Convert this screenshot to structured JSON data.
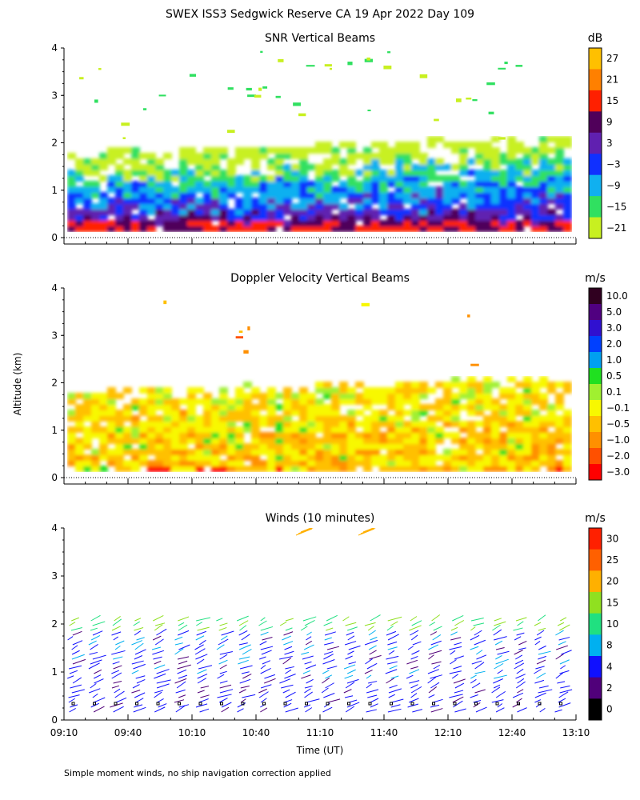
{
  "figure_title": "SWEX ISS3 Sedgwick Reserve CA  19 Apr 2022 Day 109",
  "ylabel": "Altitude (km)",
  "xlabel": "Time (UT)",
  "footnote": "Simple moment winds, no ship navigation correction applied",
  "chart_data": [
    {
      "type": "heatmap",
      "title": "SNR Vertical Beams",
      "ylim": [
        0,
        4
      ],
      "yticks": [
        0,
        1,
        2,
        3,
        4
      ],
      "colorbar": {
        "unit": "dB",
        "labels": [
          "27",
          "21",
          "15",
          "9",
          "3",
          "−3",
          "−9",
          "−15",
          "−21"
        ],
        "colors": [
          "#ffc000",
          "#ff8000",
          "#ff2000",
          "#50005a",
          "#6020b0",
          "#1030ff",
          "#10b0f0",
          "#30e060",
          "#c8f020"
        ]
      },
      "xticks": [
        "09:10",
        "09:40",
        "10:10",
        "10:40",
        "11:10",
        "11:40",
        "12:10",
        "12:40",
        "13:10"
      ]
    },
    {
      "type": "heatmap",
      "title": "Doppler Velocity Vertical Beams",
      "ylim": [
        0,
        4
      ],
      "yticks": [
        0,
        1,
        2,
        3,
        4
      ],
      "colorbar": {
        "unit": "m/s",
        "labels": [
          "10.0",
          "5.0",
          "3.0",
          "2.0",
          "1.0",
          "0.5",
          "0.1",
          "−0.1",
          "−0.5",
          "−1.0",
          "−2.0",
          "−3.0"
        ],
        "colors": [
          "#300020",
          "#500080",
          "#3010d0",
          "#0040ff",
          "#00a0f0",
          "#20e020",
          "#a0f030",
          "#f8f800",
          "#ffc000",
          "#ff9000",
          "#ff5000",
          "#ff0000"
        ]
      },
      "xticks": [
        "09:10",
        "09:40",
        "10:10",
        "10:40",
        "11:10",
        "11:40",
        "12:10",
        "12:40",
        "13:10"
      ]
    },
    {
      "type": "scatter",
      "title": "Winds (10 minutes)",
      "ylim": [
        0,
        4
      ],
      "yticks": [
        0,
        1,
        2,
        3,
        4
      ],
      "colorbar": {
        "unit": "m/s",
        "labels": [
          "30",
          "25",
          "20",
          "15",
          "10",
          "8",
          "4",
          "2",
          "0"
        ],
        "colors": [
          "#ff2000",
          "#ff6000",
          "#ffb000",
          "#90e020",
          "#20e080",
          "#00b0f0",
          "#1010ff",
          "#50007a",
          "#000000"
        ]
      },
      "xticks": [
        "09:10",
        "09:40",
        "10:10",
        "10:40",
        "11:10",
        "11:40",
        "12:10",
        "12:40",
        "13:10"
      ]
    }
  ]
}
